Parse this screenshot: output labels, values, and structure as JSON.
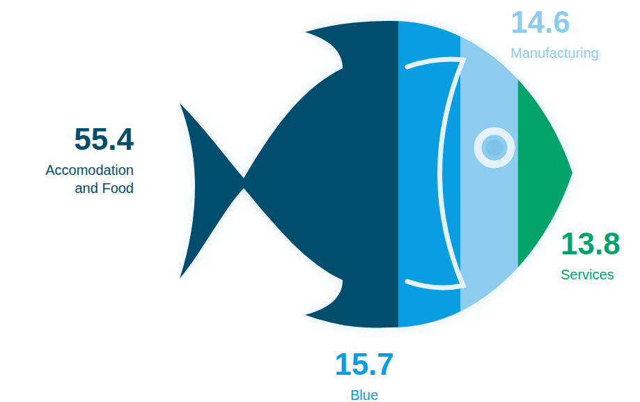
{
  "chart_data": {
    "type": "pictograph",
    "categories": [
      "Accomodation and Food",
      "Blue",
      "Manufacturing",
      "Services"
    ],
    "values": [
      55.4,
      15.7,
      14.6,
      13.8
    ],
    "colors": [
      "#014d6e",
      "#0a9de2",
      "#8dccee",
      "#00a46a"
    ],
    "data_labels": true
  }
}
